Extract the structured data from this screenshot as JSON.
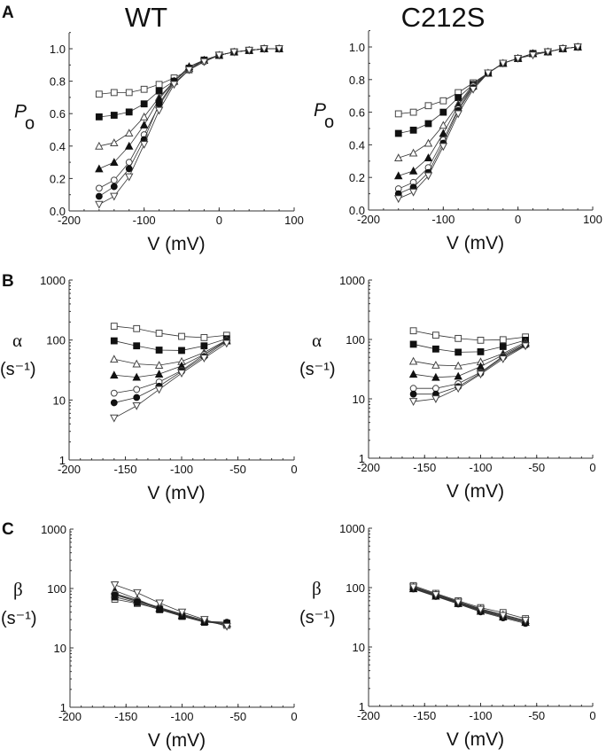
{
  "figure": {
    "column_titles": [
      "WT",
      "C212S"
    ],
    "panel_letters": [
      "A",
      "B",
      "C"
    ]
  },
  "chart_data": [
    {
      "id": "A-WT",
      "type": "scatter",
      "panel": "A",
      "title": "WT",
      "xlabel": "V (mV)",
      "ylabel": "P",
      "ylabel_sub": "o",
      "xlim": [
        -200,
        100
      ],
      "ylim": [
        0.0,
        1.1
      ],
      "yscale": "linear",
      "xticks": [
        "-200",
        "-100",
        "0",
        "100"
      ],
      "yticks": [
        "0.0",
        "0.2",
        "0.4",
        "0.6",
        "0.8",
        "1.0"
      ],
      "x": [
        -160,
        -140,
        -120,
        -100,
        -80,
        -60,
        -40,
        -20,
        0,
        20,
        40,
        60,
        80
      ],
      "series": [
        {
          "name": "open-square",
          "marker": "square-open",
          "values": [
            0.72,
            0.73,
            0.73,
            0.75,
            0.78,
            0.82,
            0.87,
            0.93,
            0.96,
            0.98,
            0.99,
            1.0,
            1.0
          ]
        },
        {
          "name": "filled-square",
          "marker": "square-filled",
          "values": [
            0.58,
            0.59,
            0.61,
            0.66,
            0.74,
            0.8,
            0.88,
            0.93,
            0.96,
            0.98,
            0.99,
            1.0,
            1.0
          ]
        },
        {
          "name": "open-triangle",
          "marker": "triangle-open",
          "values": [
            0.4,
            0.42,
            0.48,
            0.58,
            0.7,
            0.8,
            0.88,
            0.93,
            0.96,
            0.98,
            0.99,
            1.0,
            1.0
          ]
        },
        {
          "name": "filled-triangle",
          "marker": "triangle-filled",
          "values": [
            0.26,
            0.3,
            0.4,
            0.53,
            0.69,
            0.8,
            0.89,
            0.93,
            0.96,
            0.98,
            0.99,
            1.0,
            1.0
          ]
        },
        {
          "name": "open-circle",
          "marker": "circle-open",
          "values": [
            0.14,
            0.19,
            0.3,
            0.47,
            0.65,
            0.79,
            0.87,
            0.92,
            0.96,
            0.98,
            0.99,
            1.0,
            1.0
          ]
        },
        {
          "name": "filled-circle",
          "marker": "circle-filled",
          "values": [
            0.09,
            0.15,
            0.26,
            0.44,
            0.66,
            0.8,
            0.88,
            0.93,
            0.96,
            0.98,
            0.99,
            1.0,
            1.0
          ]
        },
        {
          "name": "open-inverted-triangle",
          "marker": "triangle-down-open",
          "values": [
            0.04,
            0.09,
            0.21,
            0.41,
            0.62,
            0.78,
            0.87,
            0.92,
            0.96,
            0.98,
            0.99,
            1.0,
            1.0
          ]
        }
      ]
    },
    {
      "id": "A-C212S",
      "type": "scatter",
      "panel": "A",
      "title": "C212S",
      "xlabel": "V (mV)",
      "ylabel": "P",
      "ylabel_sub": "o",
      "xlim": [
        -200,
        100
      ],
      "ylim": [
        0.0,
        1.1
      ],
      "yscale": "linear",
      "xticks": [
        "-200",
        "-100",
        "0",
        "100"
      ],
      "yticks": [
        "0.0",
        "0.2",
        "0.4",
        "0.6",
        "0.8",
        "1.0"
      ],
      "x": [
        -160,
        -140,
        -120,
        -100,
        -80,
        -60,
        -40,
        -20,
        0,
        20,
        40,
        60,
        80
      ],
      "series": [
        {
          "name": "open-square",
          "marker": "square-open",
          "values": [
            0.59,
            0.6,
            0.64,
            0.67,
            0.72,
            0.78,
            0.84,
            0.9,
            0.93,
            0.96,
            0.97,
            0.99,
            1.0
          ]
        },
        {
          "name": "filled-square",
          "marker": "square-filled",
          "values": [
            0.47,
            0.49,
            0.53,
            0.6,
            0.69,
            0.77,
            0.84,
            0.9,
            0.93,
            0.96,
            0.97,
            0.99,
            1.0
          ]
        },
        {
          "name": "open-triangle",
          "marker": "triangle-open",
          "values": [
            0.32,
            0.35,
            0.41,
            0.52,
            0.65,
            0.77,
            0.84,
            0.9,
            0.93,
            0.96,
            0.97,
            0.99,
            1.0
          ]
        },
        {
          "name": "filled-triangle",
          "marker": "triangle-filled",
          "values": [
            0.21,
            0.24,
            0.32,
            0.47,
            0.64,
            0.76,
            0.84,
            0.9,
            0.93,
            0.96,
            0.97,
            0.99,
            1.0
          ]
        },
        {
          "name": "open-circle",
          "marker": "circle-open",
          "values": [
            0.13,
            0.17,
            0.26,
            0.43,
            0.62,
            0.76,
            0.84,
            0.9,
            0.93,
            0.96,
            0.97,
            0.99,
            1.0
          ]
        },
        {
          "name": "filled-circle",
          "marker": "circle-filled",
          "values": [
            0.1,
            0.14,
            0.23,
            0.41,
            0.61,
            0.75,
            0.84,
            0.9,
            0.93,
            0.96,
            0.97,
            0.99,
            1.0
          ]
        },
        {
          "name": "open-inverted-triangle",
          "marker": "triangle-down-open",
          "values": [
            0.07,
            0.11,
            0.21,
            0.39,
            0.59,
            0.74,
            0.84,
            0.9,
            0.93,
            0.95,
            0.97,
            0.99,
            1.0
          ]
        }
      ]
    },
    {
      "id": "B-WT",
      "type": "scatter",
      "panel": "B",
      "xlabel": "V (mV)",
      "ylabel": "α",
      "ylabel_unit": "(s-1)",
      "xlim": [
        -200,
        0
      ],
      "ylim": [
        1,
        1000
      ],
      "yscale": "log",
      "xticks": [
        "-200",
        "-150",
        "-100",
        "-50",
        "0"
      ],
      "yticks": [
        "1",
        "10",
        "100",
        "1000"
      ],
      "x": [
        -160,
        -140,
        -120,
        -100,
        -80,
        -60
      ],
      "series": [
        {
          "name": "open-square",
          "marker": "square-open",
          "values": [
            170,
            155,
            130,
            115,
            110,
            120
          ]
        },
        {
          "name": "filled-square",
          "marker": "square-filled",
          "values": [
            97,
            80,
            68,
            67,
            80,
            105
          ]
        },
        {
          "name": "open-triangle",
          "marker": "triangle-open",
          "values": [
            48,
            40,
            38,
            44,
            62,
            100
          ]
        },
        {
          "name": "filled-triangle",
          "marker": "triangle-filled",
          "values": [
            26,
            24,
            27,
            37,
            58,
            97
          ]
        },
        {
          "name": "open-circle",
          "marker": "circle-open",
          "values": [
            13,
            15,
            20,
            31,
            57,
            98
          ]
        },
        {
          "name": "filled-circle",
          "marker": "circle-filled",
          "values": [
            9,
            11,
            17,
            30,
            53,
            95
          ]
        },
        {
          "name": "open-inverted-triangle",
          "marker": "triangle-down-open",
          "values": [
            5,
            8,
            15,
            28,
            50,
            88
          ]
        }
      ]
    },
    {
      "id": "B-C212S",
      "type": "scatter",
      "panel": "B",
      "xlabel": "V (mV)",
      "ylabel": "α",
      "ylabel_unit": "(s-1)",
      "xlim": [
        -200,
        0
      ],
      "ylim": [
        1,
        1000
      ],
      "yscale": "log",
      "xticks": [
        "-200",
        "-150",
        "-100",
        "-50",
        "0"
      ],
      "yticks": [
        "1",
        "10",
        "100",
        "1000"
      ],
      "x": [
        -160,
        -140,
        -120,
        -100,
        -80,
        -60
      ],
      "series": [
        {
          "name": "open-square",
          "marker": "square-open",
          "values": [
            140,
            118,
            104,
            97,
            99,
            110
          ]
        },
        {
          "name": "filled-square",
          "marker": "square-filled",
          "values": [
            83,
            69,
            61,
            62,
            76,
            97
          ]
        },
        {
          "name": "open-triangle",
          "marker": "triangle-open",
          "values": [
            43,
            37,
            36,
            42,
            58,
            90
          ]
        },
        {
          "name": "filled-triangle",
          "marker": "triangle-filled",
          "values": [
            26,
            23,
            24,
            35,
            55,
            85
          ]
        },
        {
          "name": "open-circle",
          "marker": "circle-open",
          "values": [
            15,
            15,
            18,
            28,
            52,
            82
          ]
        },
        {
          "name": "filled-circle",
          "marker": "circle-filled",
          "values": [
            12,
            12,
            16,
            27,
            50,
            80
          ]
        },
        {
          "name": "open-inverted-triangle",
          "marker": "triangle-down-open",
          "values": [
            9,
            10,
            15,
            26,
            47,
            78
          ]
        }
      ]
    },
    {
      "id": "C-WT",
      "type": "scatter",
      "panel": "C",
      "xlabel": "V (mV)",
      "ylabel": "β",
      "ylabel_unit": "(s-1)",
      "xlim": [
        -200,
        0
      ],
      "ylim": [
        1,
        1000
      ],
      "yscale": "log",
      "xticks": [
        "-200",
        "-150",
        "-100",
        "-50",
        "0"
      ],
      "yticks": [
        "1",
        "10",
        "100",
        "1000"
      ],
      "x": [
        -160,
        -140,
        -120,
        -100,
        -80,
        -60
      ],
      "series": [
        {
          "name": "open-square",
          "marker": "square-open",
          "values": [
            66,
            56,
            45,
            34,
            28,
            24
          ]
        },
        {
          "name": "filled-square",
          "marker": "square-filled",
          "values": [
            72,
            58,
            44,
            34,
            27,
            26
          ]
        },
        {
          "name": "open-triangle",
          "marker": "triangle-open",
          "values": [
            80,
            62,
            47,
            36,
            28,
            25
          ]
        },
        {
          "name": "filled-triangle",
          "marker": "triangle-filled",
          "values": [
            92,
            66,
            46,
            35,
            28,
            26
          ]
        },
        {
          "name": "open-circle",
          "marker": "circle-open",
          "values": [
            82,
            63,
            48,
            37,
            29,
            25
          ]
        },
        {
          "name": "filled-circle",
          "marker": "circle-filled",
          "values": [
            78,
            60,
            46,
            35,
            28,
            27
          ]
        },
        {
          "name": "open-inverted-triangle",
          "marker": "triangle-down-open",
          "values": [
            115,
            85,
            57,
            40,
            30,
            23
          ]
        }
      ]
    },
    {
      "id": "C-C212S",
      "type": "scatter",
      "panel": "C",
      "xlabel": "V (mV)",
      "ylabel": "β",
      "ylabel_unit": "(s-1)",
      "xlim": [
        -200,
        0
      ],
      "ylim": [
        1,
        1000
      ],
      "yscale": "log",
      "xticks": [
        "-200",
        "-150",
        "-100",
        "-50",
        "0"
      ],
      "yticks": [
        "1",
        "10",
        "100",
        "1000"
      ],
      "x": [
        -160,
        -140,
        -120,
        -100,
        -80,
        -60
      ],
      "series": [
        {
          "name": "open-square",
          "marker": "square-open",
          "values": [
            108,
            80,
            60,
            46,
            38,
            30
          ]
        },
        {
          "name": "filled-square",
          "marker": "square-filled",
          "values": [
            98,
            73,
            55,
            41,
            32,
            27
          ]
        },
        {
          "name": "open-triangle",
          "marker": "triangle-open",
          "values": [
            104,
            78,
            58,
            44,
            35,
            28
          ]
        },
        {
          "name": "filled-triangle",
          "marker": "triangle-filled",
          "values": [
            96,
            72,
            54,
            40,
            32,
            26
          ]
        },
        {
          "name": "open-circle",
          "marker": "circle-open",
          "values": [
            100,
            75,
            56,
            42,
            33,
            27
          ]
        },
        {
          "name": "filled-circle",
          "marker": "circle-filled",
          "values": [
            95,
            71,
            53,
            39,
            31,
            25
          ]
        },
        {
          "name": "open-inverted-triangle",
          "marker": "triangle-down-open",
          "values": [
            102,
            76,
            57,
            43,
            34,
            28
          ]
        }
      ]
    }
  ]
}
